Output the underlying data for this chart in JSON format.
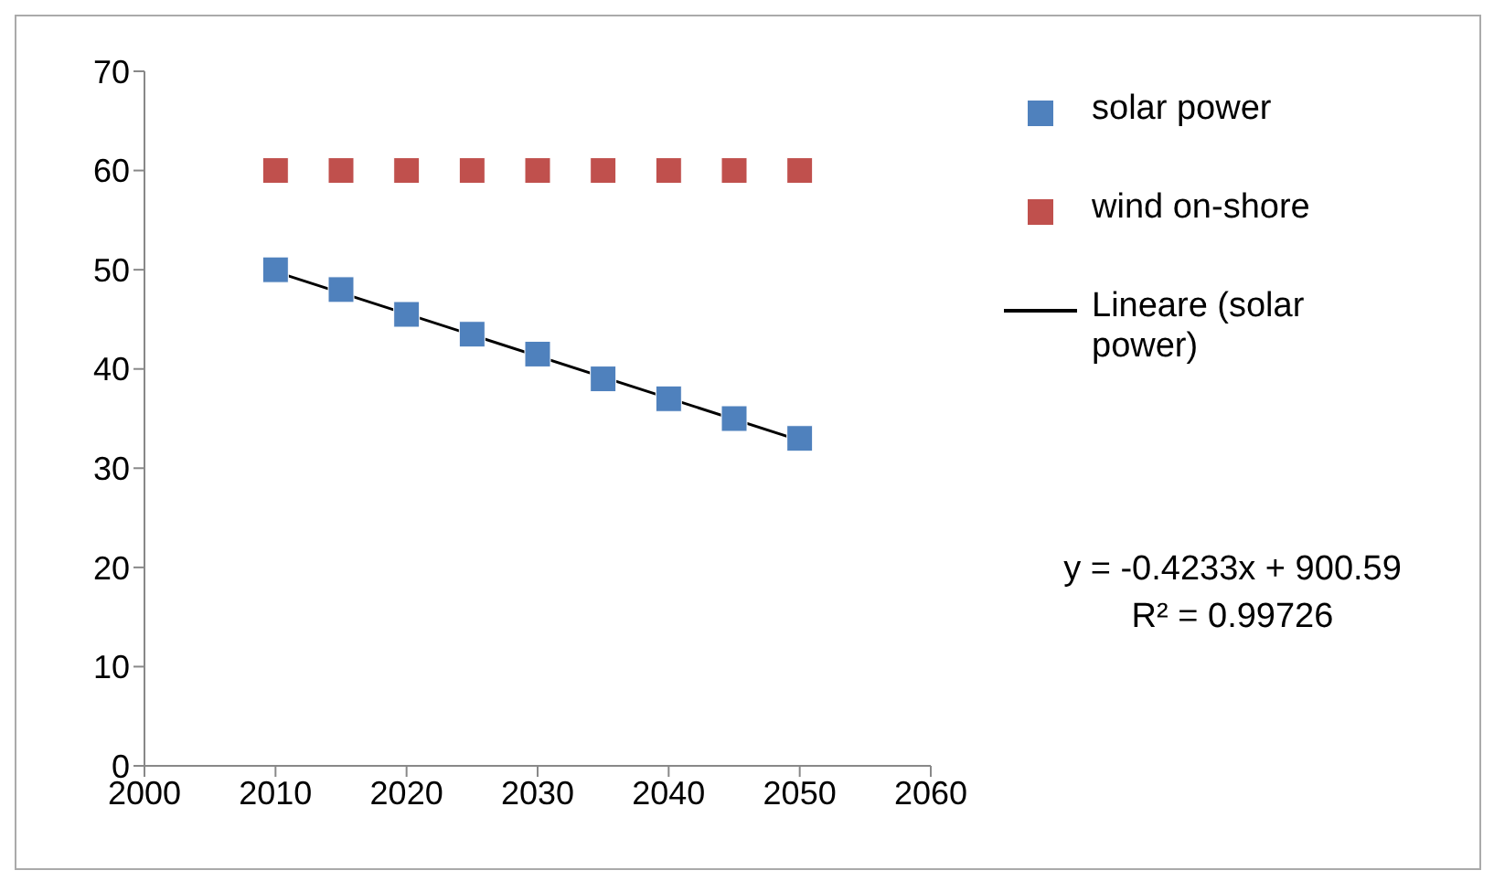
{
  "chart_data": {
    "type": "scatter",
    "xlim": [
      2000,
      2060
    ],
    "xticks": [
      2000,
      2010,
      2020,
      2030,
      2040,
      2050,
      2060
    ],
    "ylim": [
      0,
      70
    ],
    "yticks": [
      0,
      10,
      20,
      30,
      40,
      50,
      60,
      70
    ],
    "legend": "right",
    "marker": "square",
    "series": [
      {
        "name": "solar power",
        "color": "#4f81bd",
        "x": [
          2010,
          2015,
          2020,
          2025,
          2030,
          2035,
          2040,
          2045,
          2050
        ],
        "values": [
          50,
          48,
          45.5,
          43.5,
          41.5,
          39,
          37,
          35,
          33
        ]
      },
      {
        "name": "wind on-shore",
        "color": "#c0504d",
        "x": [
          2010,
          2015,
          2020,
          2025,
          2030,
          2035,
          2040,
          2045,
          2050
        ],
        "values": [
          60,
          60,
          60,
          60,
          60,
          60,
          60,
          60,
          60
        ]
      },
      {
        "name": "Lineare (solar power)",
        "type": "line",
        "marker": "none",
        "color": "#000000",
        "x": [
          2010,
          2050
        ],
        "values": [
          49.8,
          32.8
        ]
      }
    ],
    "annotations": [
      "y = -0.4233x + 900.59",
      "R² = 0.99726"
    ]
  }
}
